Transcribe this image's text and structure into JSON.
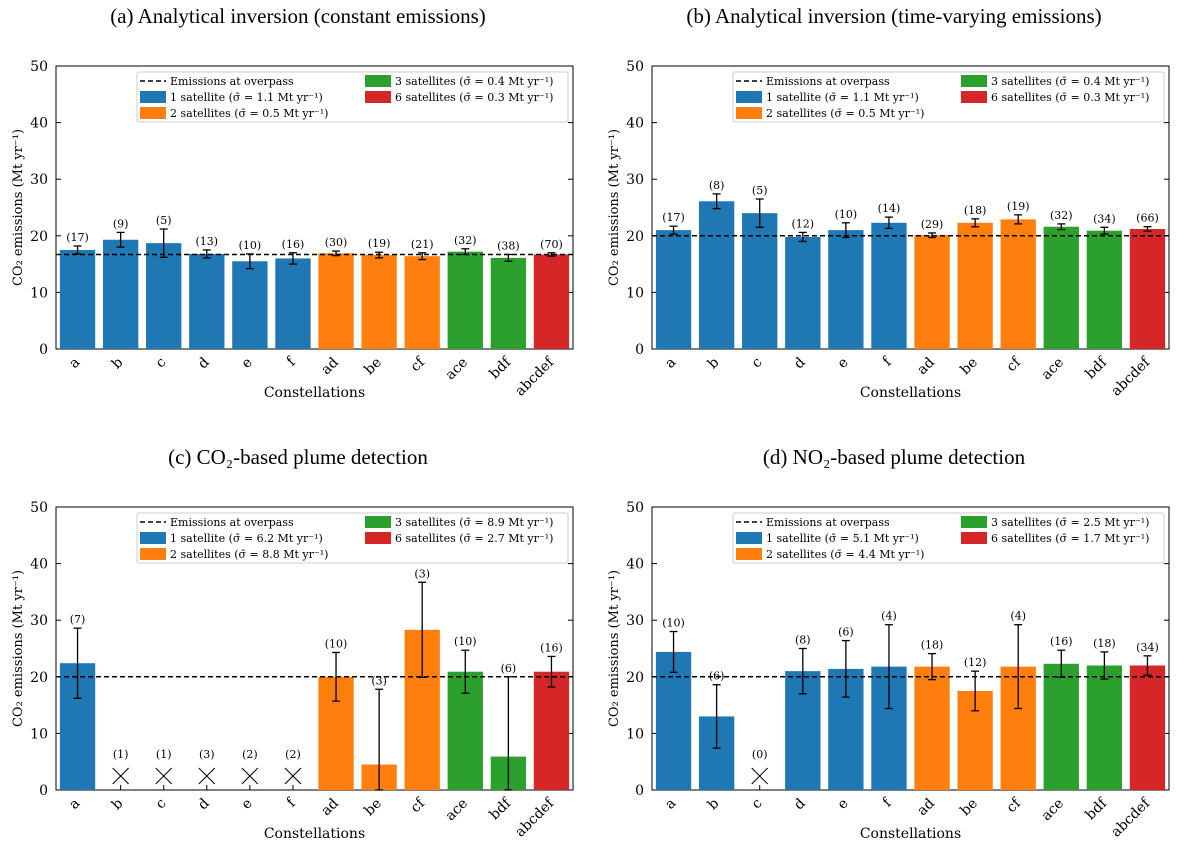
{
  "colors": {
    "1 satellite": "#1f77b4",
    "2 satellites": "#ff7f0e",
    "3 satellites": "#2ca02c",
    "6 satellites": "#d62728"
  },
  "chart_data": [
    {
      "type": "bar",
      "title": "(a) Analytical inversion (constant emissions)",
      "xlabel": "Constellations",
      "ylabel": "CO₂ emissions (Mt yr⁻¹)",
      "ylim": [
        0,
        50
      ],
      "yticks": [
        "0",
        "10",
        "20",
        "30",
        "40",
        "50"
      ],
      "reference_line": 16.7,
      "legend": [
        {
          "label": "Emissions at overpass",
          "style": "dashed"
        },
        {
          "label": "1 satellite (σ̄ = 1.1 Mt yr⁻¹)",
          "group": "1 satellite"
        },
        {
          "label": "2 satellites (σ̄ = 0.5 Mt yr⁻¹)",
          "group": "2 satellites"
        },
        {
          "label": "3 satellites (σ̄ = 0.4 Mt yr⁻¹)",
          "group": "3 satellites"
        },
        {
          "label": "6 satellites (σ̄ = 0.3 Mt yr⁻¹)",
          "group": "6 satellites"
        }
      ],
      "categories": [
        "a",
        "b",
        "c",
        "d",
        "e",
        "f",
        "ad",
        "be",
        "cf",
        "ace",
        "bdf",
        "abcdef"
      ],
      "groups": [
        "1 satellite",
        "1 satellite",
        "1 satellite",
        "1 satellite",
        "1 satellite",
        "1 satellite",
        "2 satellites",
        "2 satellites",
        "2 satellites",
        "3 satellites",
        "3 satellites",
        "6 satellites"
      ],
      "values": [
        17.5,
        19.3,
        18.7,
        16.8,
        15.5,
        16.0,
        16.9,
        16.6,
        16.4,
        17.2,
        16.1,
        16.7
      ],
      "errors": [
        0.7,
        1.3,
        2.5,
        0.7,
        1.3,
        1.0,
        0.4,
        0.5,
        0.6,
        0.5,
        0.6,
        0.3
      ],
      "counts": [
        "(17)",
        "(9)",
        "(5)",
        "(13)",
        "(10)",
        "(16)",
        "(30)",
        "(19)",
        "(21)",
        "(32)",
        "(38)",
        "(70)"
      ],
      "missing": [
        false,
        false,
        false,
        false,
        false,
        false,
        false,
        false,
        false,
        false,
        false,
        false
      ]
    },
    {
      "type": "bar",
      "title": "(b) Analytical inversion (time-varying emissions)",
      "xlabel": "Constellations",
      "ylabel": "CO₂ emissions (Mt yr⁻¹)",
      "ylim": [
        0,
        50
      ],
      "yticks": [
        "0",
        "10",
        "20",
        "30",
        "40",
        "50"
      ],
      "reference_line": 20,
      "legend": [
        {
          "label": "Emissions at overpass",
          "style": "dashed"
        },
        {
          "label": "1 satellite (σ̄ = 1.1 Mt yr⁻¹)",
          "group": "1 satellite"
        },
        {
          "label": "2 satellites (σ̄ = 0.5 Mt yr⁻¹)",
          "group": "2 satellites"
        },
        {
          "label": "3 satellites (σ̄ = 0.4 Mt yr⁻¹)",
          "group": "3 satellites"
        },
        {
          "label": "6 satellites (σ̄ = 0.3 Mt yr⁻¹)",
          "group": "6 satellites"
        }
      ],
      "categories": [
        "a",
        "b",
        "c",
        "d",
        "e",
        "f",
        "ad",
        "be",
        "cf",
        "ace",
        "bdf",
        "abcdef"
      ],
      "groups": [
        "1 satellite",
        "1 satellite",
        "1 satellite",
        "1 satellite",
        "1 satellite",
        "1 satellite",
        "2 satellites",
        "2 satellites",
        "2 satellites",
        "3 satellites",
        "3 satellites",
        "6 satellites"
      ],
      "values": [
        21.0,
        26.1,
        24.0,
        19.8,
        21.0,
        22.3,
        20.1,
        22.3,
        22.9,
        21.6,
        20.9,
        21.2
      ],
      "errors": [
        0.7,
        1.3,
        2.5,
        0.8,
        1.3,
        1.0,
        0.4,
        0.7,
        0.8,
        0.5,
        0.6,
        0.4
      ],
      "counts": [
        "(17)",
        "(8)",
        "(5)",
        "(12)",
        "(10)",
        "(14)",
        "(29)",
        "(18)",
        "(19)",
        "(32)",
        "(34)",
        "(66)"
      ],
      "missing": [
        false,
        false,
        false,
        false,
        false,
        false,
        false,
        false,
        false,
        false,
        false,
        false
      ]
    },
    {
      "type": "bar",
      "title": "(c) CO₂-based plume detection",
      "xlabel": "Constellations",
      "ylabel": "CO₂ emissions (Mt yr⁻¹)",
      "ylim": [
        0,
        50
      ],
      "yticks": [
        "0",
        "10",
        "20",
        "30",
        "40",
        "50"
      ],
      "reference_line": 20,
      "legend": [
        {
          "label": "Emissions at overpass",
          "style": "dashed"
        },
        {
          "label": "1 satellite (σ̄ = 6.2 Mt yr⁻¹)",
          "group": "1 satellite"
        },
        {
          "label": "2 satellites (σ̄ = 8.8 Mt yr⁻¹)",
          "group": "2 satellites"
        },
        {
          "label": "3 satellites (σ̄ = 8.9 Mt yr⁻¹)",
          "group": "3 satellites"
        },
        {
          "label": "6 satellites (σ̄ = 2.7 Mt yr⁻¹)",
          "group": "6 satellites"
        }
      ],
      "categories": [
        "a",
        "b",
        "c",
        "d",
        "e",
        "f",
        "ad",
        "be",
        "cf",
        "ace",
        "bdf",
        "abcdef"
      ],
      "groups": [
        "1 satellite",
        "1 satellite",
        "1 satellite",
        "1 satellite",
        "1 satellite",
        "1 satellite",
        "2 satellites",
        "2 satellites",
        "2 satellites",
        "3 satellites",
        "3 satellites",
        "6 satellites"
      ],
      "values": [
        22.4,
        0,
        0,
        0,
        0,
        0,
        20.0,
        4.5,
        28.3,
        20.9,
        5.9,
        20.9
      ],
      "errors": [
        6.2,
        0,
        0,
        0,
        0,
        0,
        4.3,
        13.3,
        8.4,
        3.8,
        14.1,
        2.7
      ],
      "counts": [
        "(7)",
        "(1)",
        "(1)",
        "(3)",
        "(2)",
        "(2)",
        "(10)",
        "(3)",
        "(3)",
        "(10)",
        "(6)",
        "(16)"
      ],
      "missing": [
        false,
        true,
        true,
        true,
        true,
        true,
        false,
        false,
        false,
        false,
        false,
        false
      ]
    },
    {
      "type": "bar",
      "title": "(d) NO₂-based plume detection",
      "xlabel": "Constellations",
      "ylabel": "CO₂ emissions (Mt yr⁻¹)",
      "ylim": [
        0,
        50
      ],
      "yticks": [
        "0",
        "10",
        "20",
        "30",
        "40",
        "50"
      ],
      "reference_line": 20,
      "legend": [
        {
          "label": "Emissions at overpass",
          "style": "dashed"
        },
        {
          "label": "1 satellite (σ̄ = 5.1 Mt yr⁻¹)",
          "group": "1 satellite"
        },
        {
          "label": "2 satellites (σ̄ = 4.4 Mt yr⁻¹)",
          "group": "2 satellites"
        },
        {
          "label": "3 satellites (σ̄ = 2.5 Mt yr⁻¹)",
          "group": "3 satellites"
        },
        {
          "label": "6 satellites (σ̄ = 1.7 Mt yr⁻¹)",
          "group": "6 satellites"
        }
      ],
      "categories": [
        "a",
        "b",
        "c",
        "d",
        "e",
        "f",
        "ad",
        "be",
        "cf",
        "ace",
        "bdf",
        "abcdef"
      ],
      "groups": [
        "1 satellite",
        "1 satellite",
        "1 satellite",
        "1 satellite",
        "1 satellite",
        "1 satellite",
        "2 satellites",
        "2 satellites",
        "2 satellites",
        "3 satellites",
        "3 satellites",
        "6 satellites"
      ],
      "values": [
        24.4,
        13.0,
        0,
        21.0,
        21.4,
        21.8,
        21.8,
        17.5,
        21.8,
        22.3,
        22.0,
        22.0
      ],
      "errors": [
        3.6,
        5.6,
        0,
        4.0,
        5.0,
        7.4,
        2.3,
        3.5,
        7.4,
        2.4,
        2.4,
        1.7
      ],
      "counts": [
        "(10)",
        "(6)",
        "(0)",
        "(8)",
        "(6)",
        "(4)",
        "(18)",
        "(12)",
        "(4)",
        "(16)",
        "(18)",
        "(34)"
      ],
      "missing": [
        false,
        false,
        true,
        false,
        false,
        false,
        false,
        false,
        false,
        false,
        false,
        false
      ]
    }
  ]
}
